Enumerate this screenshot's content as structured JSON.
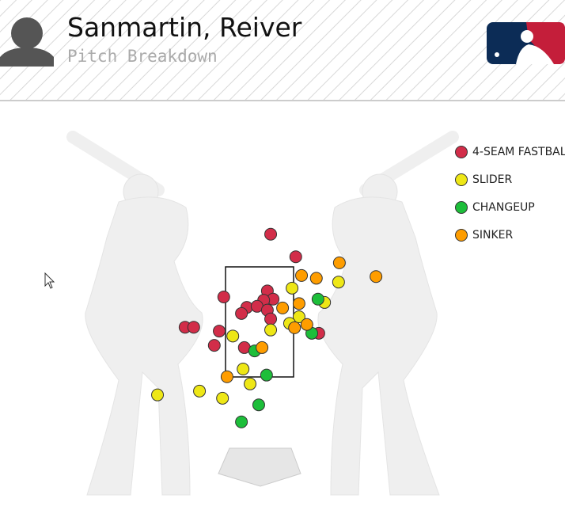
{
  "header": {
    "name": "Sanmartin, Reiver",
    "subtitle": "Pitch Breakdown"
  },
  "chart_data": {
    "type": "scatter",
    "xlim": [
      -4,
      4
    ],
    "ylim": [
      0,
      5
    ],
    "series": [
      {
        "name": "4-SEAM FASTBALL",
        "color": "#d22d49",
        "x": [
          0.27,
          0.88,
          -0.87,
          0.19,
          0.33,
          0.1,
          -0.31,
          -0.06,
          -0.44,
          0.19,
          0.27,
          -1.81,
          -1.6,
          -0.98,
          -1.1,
          -0.37,
          1.44
        ],
        "values": [
          4.09,
          3.68,
          2.95,
          3.06,
          2.91,
          2.89,
          2.76,
          2.78,
          2.65,
          2.71,
          2.55,
          2.4,
          2.4,
          2.33,
          2.07,
          2.03,
          2.29
        ]
      },
      {
        "name": "SLIDER",
        "color": "#eee716",
        "x": [
          0.79,
          1.92,
          1.58,
          0.96,
          0.73,
          0.27,
          -0.65,
          -0.4,
          -0.23,
          -1.46,
          -0.9,
          -2.48
        ],
        "values": [
          3.11,
          3.22,
          2.85,
          2.59,
          2.47,
          2.35,
          2.24,
          1.64,
          1.37,
          1.24,
          1.11,
          1.17
        ]
      },
      {
        "name": "CHANGEUP",
        "color": "#1dbe3a",
        "x": [
          1.42,
          1.27,
          -0.12,
          0.17,
          -0.02,
          -0.44
        ],
        "values": [
          2.91,
          2.29,
          1.97,
          1.53,
          0.99,
          0.68
        ]
      },
      {
        "name": "SINKER",
        "color": "#fe9d00",
        "x": [
          1.94,
          1.38,
          1.02,
          2.83,
          0.96,
          0.56,
          1.15,
          0.85,
          0.06,
          -0.79
        ],
        "values": [
          3.57,
          3.29,
          3.34,
          3.32,
          2.83,
          2.75,
          2.45,
          2.39,
          2.03,
          1.5
        ]
      }
    ]
  }
}
